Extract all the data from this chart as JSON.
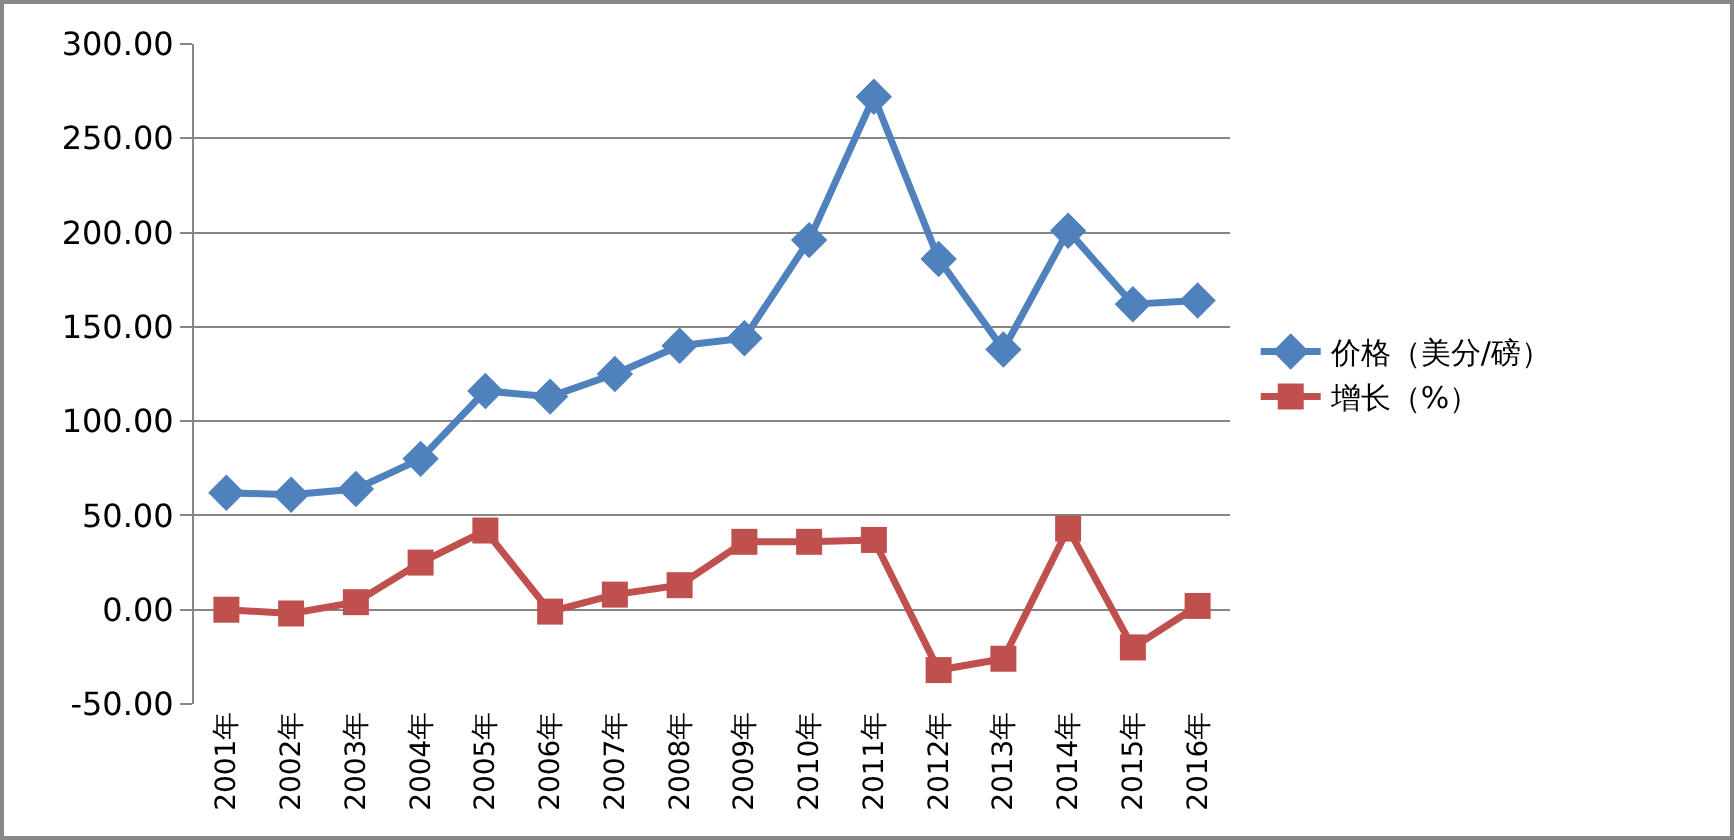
{
  "chart_data": {
    "type": "line",
    "categories": [
      "2001年",
      "2002年",
      "2003年",
      "2004年",
      "2005年",
      "2006年",
      "2007年",
      "2008年",
      "2009年",
      "2010年",
      "2011年",
      "2012年",
      "2013年",
      "2014年",
      "2015年",
      "2016年"
    ],
    "series": [
      {
        "name": "价格（美分/磅）",
        "color": "#4f81bd",
        "marker": "diamond",
        "values": [
          62,
          61,
          64,
          80,
          116,
          113,
          125,
          140,
          144,
          196,
          272,
          186,
          138,
          201,
          162,
          164
        ]
      },
      {
        "name": "增长（%）",
        "color": "#c0504d",
        "marker": "square",
        "values": [
          0,
          -2,
          4,
          25,
          42,
          -1,
          8,
          13,
          36,
          36,
          37,
          -32,
          -26,
          43,
          -20,
          2
        ]
      }
    ],
    "ylim": [
      -50,
      300
    ],
    "yticks": [
      {
        "value": -50,
        "label": "-50.00"
      },
      {
        "value": 0,
        "label": "0.00"
      },
      {
        "value": 50,
        "label": "50.00"
      },
      {
        "value": 100,
        "label": "100.00"
      },
      {
        "value": 150,
        "label": "150.00"
      },
      {
        "value": 200,
        "label": "200.00"
      },
      {
        "value": 250,
        "label": "250.00"
      },
      {
        "value": 300,
        "label": "300.00"
      }
    ],
    "grid": "y",
    "legend": "right"
  }
}
